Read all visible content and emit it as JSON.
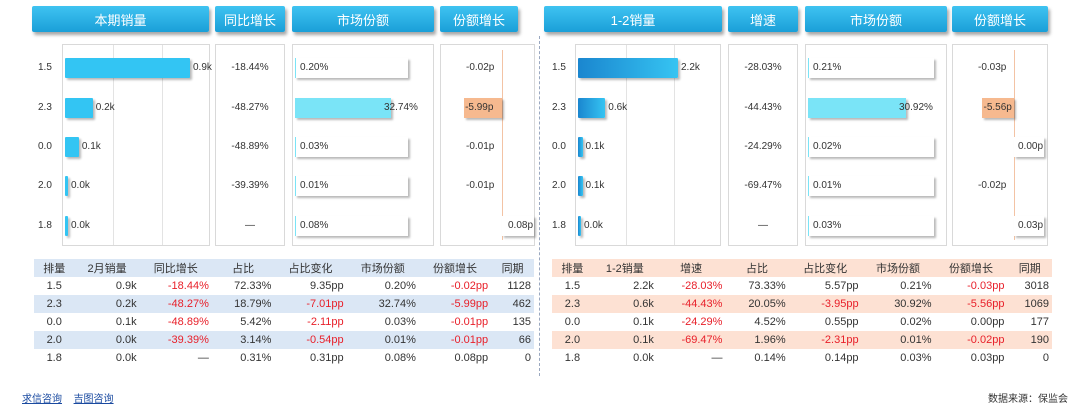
{
  "left": {
    "headers": {
      "sales": "本期销量",
      "yoy": "同比增长",
      "share": "市场份额",
      "share_growth": "份额增长"
    },
    "categories": [
      "1.5",
      "2.3",
      "0.0",
      "2.0",
      "1.8"
    ],
    "yoy": [
      "-18.44%",
      "-48.27%",
      "-48.89%",
      "-39.39%",
      "—"
    ],
    "table": {
      "columns": [
        "排量",
        "2月销量",
        "同比增长",
        "占比",
        "占比变化",
        "市场份额",
        "份额增长",
        "同期"
      ],
      "rows": [
        [
          "1.5",
          "0.9k",
          "-18.44%",
          "72.33%",
          "9.35pp",
          "0.20%",
          "-0.02pp",
          "1128"
        ],
        [
          "2.3",
          "0.2k",
          "-48.27%",
          "18.79%",
          "-7.01pp",
          "32.74%",
          "-5.99pp",
          "462"
        ],
        [
          "0.0",
          "0.1k",
          "-48.89%",
          "5.42%",
          "-2.11pp",
          "0.03%",
          "-0.01pp",
          "135"
        ],
        [
          "2.0",
          "0.0k",
          "-39.39%",
          "3.14%",
          "-0.54pp",
          "0.01%",
          "-0.01pp",
          "66"
        ],
        [
          "1.8",
          "0.0k",
          "—",
          "0.31%",
          "0.31pp",
          "0.08%",
          "0.08pp",
          "0"
        ]
      ]
    }
  },
  "right": {
    "headers": {
      "sales": "1-2销量",
      "yoy": "增速",
      "share": "市场份额",
      "share_growth": "份额增长"
    },
    "categories": [
      "1.5",
      "2.3",
      "0.0",
      "2.0",
      "1.8"
    ],
    "yoy": [
      "-28.03%",
      "-44.43%",
      "-24.29%",
      "-69.47%",
      "—"
    ],
    "table": {
      "columns": [
        "排量",
        "1-2销量",
        "增速",
        "占比",
        "占比变化",
        "市场份额",
        "份额增长",
        "同期"
      ],
      "rows": [
        [
          "1.5",
          "2.2k",
          "-28.03%",
          "73.33%",
          "5.57pp",
          "0.21%",
          "-0.03pp",
          "3018"
        ],
        [
          "2.3",
          "0.6k",
          "-44.43%",
          "20.05%",
          "-3.95pp",
          "30.92%",
          "-5.56pp",
          "1069"
        ],
        [
          "0.0",
          "0.1k",
          "-24.29%",
          "4.52%",
          "0.55pp",
          "0.02%",
          "0.00pp",
          "177"
        ],
        [
          "2.0",
          "0.1k",
          "-69.47%",
          "1.96%",
          "-2.31pp",
          "0.01%",
          "-0.02pp",
          "190"
        ],
        [
          "1.8",
          "0.0k",
          "—",
          "0.14%",
          "0.14pp",
          "0.03%",
          "0.03pp",
          "0"
        ]
      ]
    }
  },
  "footer": {
    "links": [
      "求信咨询",
      "吉图咨询"
    ],
    "source": "数据来源：保监会"
  },
  "colors": {
    "bar_left": "#33c5f3",
    "bar_right": "#1a92d6",
    "share_high": "#7ae4f7",
    "growth_neg": "#f6b98f",
    "header_left_bg": "#dbe7f5",
    "header_right_bg": "#fde1d3",
    "stripe_left": "#dbe7f5",
    "stripe_right": "#fde1d3",
    "neg_text": "#e8202a"
  },
  "chart_data": [
    {
      "type": "bar",
      "title": "本期销量",
      "categories": [
        "1.5",
        "2.3",
        "0.0",
        "2.0",
        "1.8"
      ],
      "values": [
        0.9,
        0.2,
        0.1,
        0.0,
        0.0
      ],
      "labels": [
        "0.9k",
        "0.2k",
        "0.1k",
        "0.0k",
        "0.0k"
      ],
      "series": [
        {
          "name": "本期销量",
          "values": [
            0.9,
            0.2,
            0.1,
            0.0,
            0.0
          ]
        }
      ],
      "yoy": [
        "-18.44%",
        "-48.27%",
        "-48.89%",
        "-39.39%",
        "—"
      ],
      "share": [
        0.2,
        32.74,
        0.03,
        0.01,
        0.08
      ],
      "share_labels": [
        "0.20%",
        "32.74%",
        "0.03%",
        "0.01%",
        "0.08%"
      ],
      "share_growth": [
        -0.02,
        -5.99,
        -0.01,
        -0.01,
        0.08
      ],
      "share_growth_labels": [
        "-0.02p",
        "-5.99p",
        "-0.01p",
        "-0.01p",
        "0.08p"
      ]
    },
    {
      "type": "bar",
      "title": "1-2销量",
      "categories": [
        "1.5",
        "2.3",
        "0.0",
        "2.0",
        "1.8"
      ],
      "values": [
        2.2,
        0.6,
        0.1,
        0.1,
        0.0
      ],
      "labels": [
        "2.2k",
        "0.6k",
        "0.1k",
        "0.1k",
        "0.0k"
      ],
      "series": [
        {
          "name": "1-2销量",
          "values": [
            2.2,
            0.6,
            0.1,
            0.1,
            0.0
          ]
        }
      ],
      "yoy": [
        "-28.03%",
        "-44.43%",
        "-24.29%",
        "-69.47%",
        "—"
      ],
      "share": [
        0.21,
        30.92,
        0.02,
        0.01,
        0.03
      ],
      "share_labels": [
        "0.21%",
        "30.92%",
        "0.02%",
        "0.01%",
        "0.03%"
      ],
      "share_growth": [
        -0.03,
        -5.56,
        0.0,
        -0.02,
        0.03
      ],
      "share_growth_labels": [
        "-0.03p",
        "-5.56p",
        "0.00p",
        "-0.02p",
        "0.03p"
      ]
    }
  ]
}
